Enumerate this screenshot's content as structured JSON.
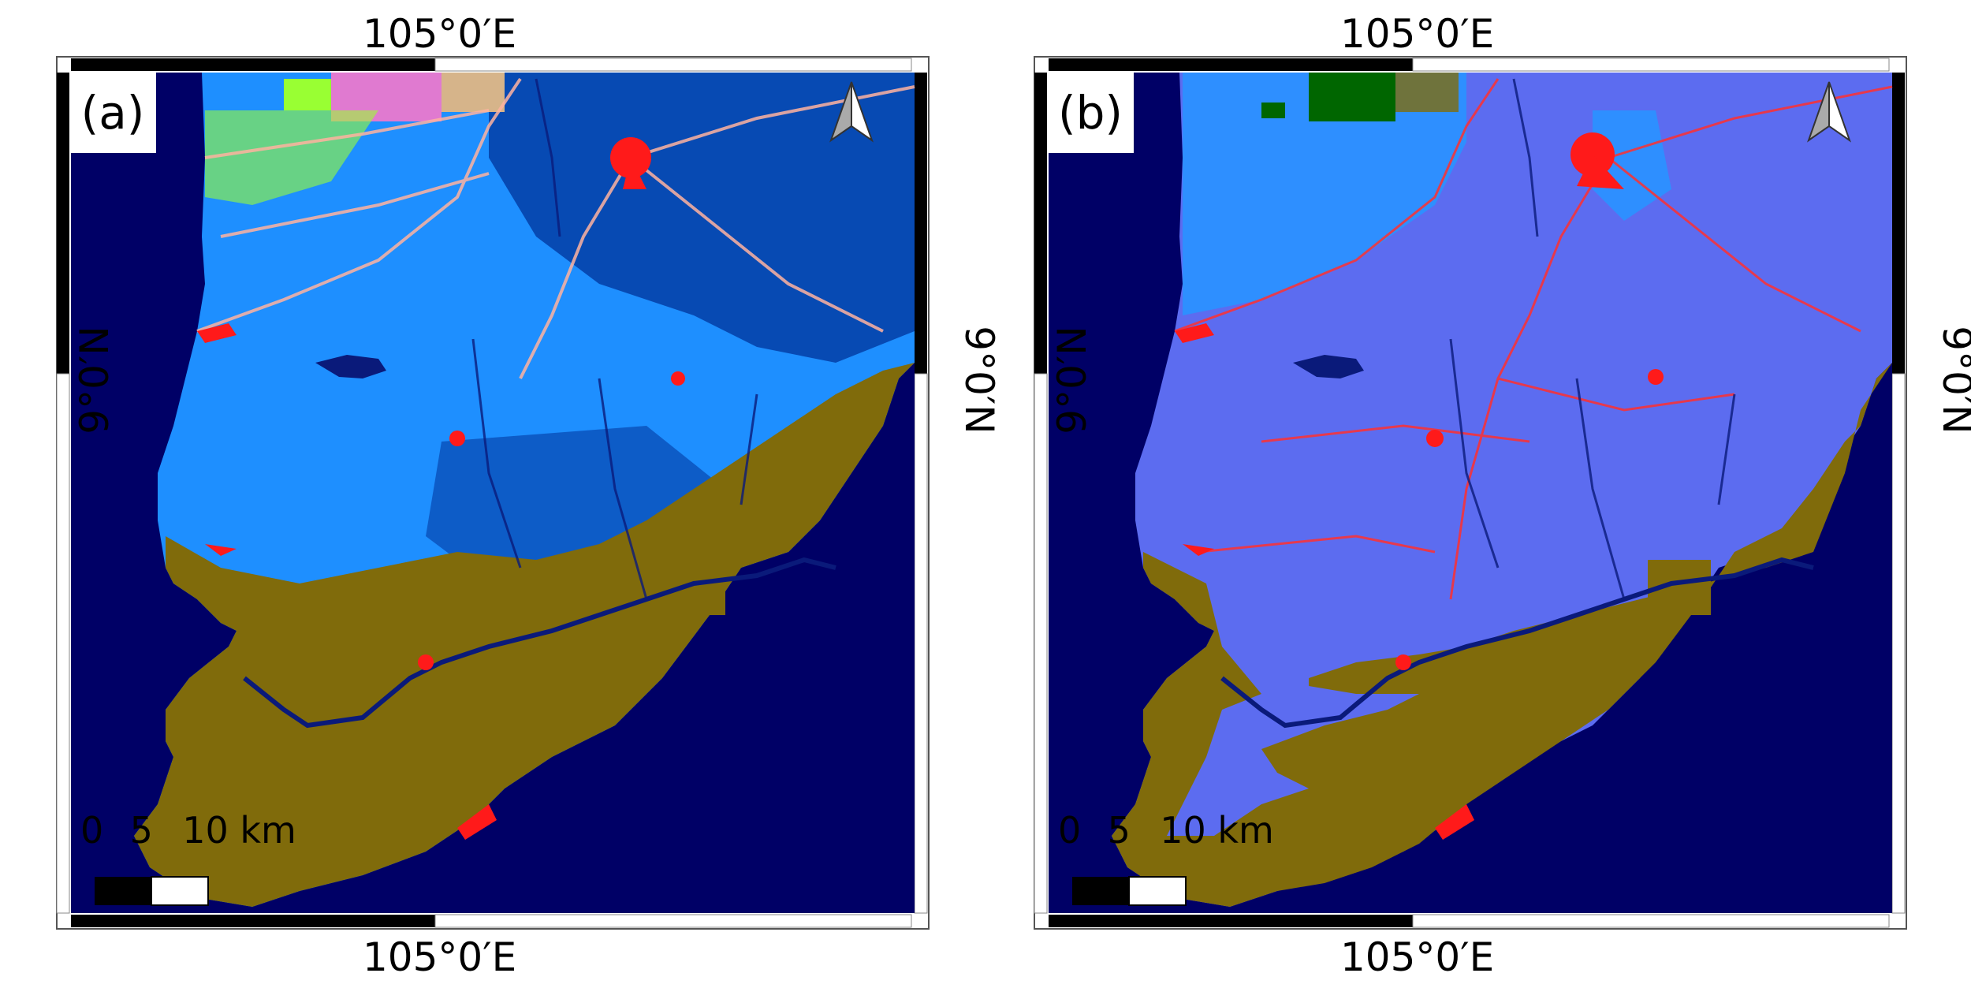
{
  "panels": [
    {
      "id": "a",
      "label": "(a)",
      "coords": {
        "top": "105°0′E",
        "bottom": "105°0′E",
        "left": "9°0′N",
        "right": "9°0′N"
      },
      "scale_bar": {
        "ticks": [
          "0",
          "5",
          "10 km"
        ]
      },
      "colors": {
        "sea": "#000066",
        "land_main": "#1e8fff",
        "land_dark": "#003399",
        "mangrove": "#806b0b",
        "urban": "#ff1a1a",
        "crop_green": "#99ff33",
        "crop_pink": "#e07ad0",
        "roads": "#ffb3a0"
      }
    },
    {
      "id": "b",
      "label": "(b)",
      "coords": {
        "top": "105°0′E",
        "bottom": "105°0′E",
        "left": "9°0′N",
        "right": "9°0′N"
      },
      "scale_bar": {
        "ticks": [
          "0",
          "5",
          "10 km"
        ]
      },
      "colors": {
        "sea": "#000066",
        "land_main": "#5c6cf0",
        "land_dark": "#1f3fbf",
        "land_light": "#2e8fff",
        "mangrove": "#806b0b",
        "urban": "#ff1a1a",
        "forest": "#006600",
        "roads": "#ff3030"
      }
    }
  ],
  "north_arrow_icon": "north-arrow-icon"
}
